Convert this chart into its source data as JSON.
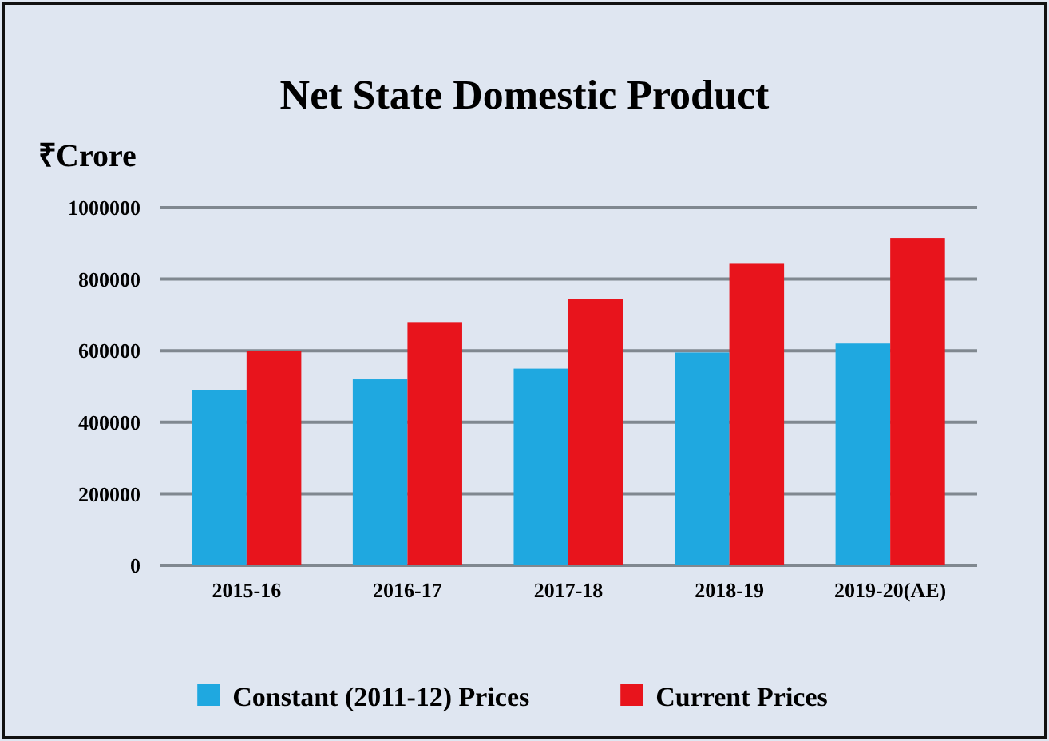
{
  "chart_data": {
    "type": "bar",
    "title": "Net State Domestic Product",
    "ylabel": "₹Crore",
    "categories": [
      "2015-16",
      "2016-17",
      "2017-18",
      "2018-19",
      "2019-20(AE)"
    ],
    "series": [
      {
        "name": "Constant (2011-12) Prices",
        "color": "#1fa8e0",
        "values": [
          490000,
          520000,
          550000,
          595000,
          620000
        ]
      },
      {
        "name": "Current Prices",
        "color": "#e8141c",
        "values": [
          600000,
          680000,
          745000,
          845000,
          915000
        ]
      }
    ],
    "ylim": [
      0,
      1000000
    ],
    "yticks": [
      0,
      200000,
      400000,
      600000,
      800000,
      1000000
    ],
    "grid": "y",
    "legend": "bottom"
  }
}
